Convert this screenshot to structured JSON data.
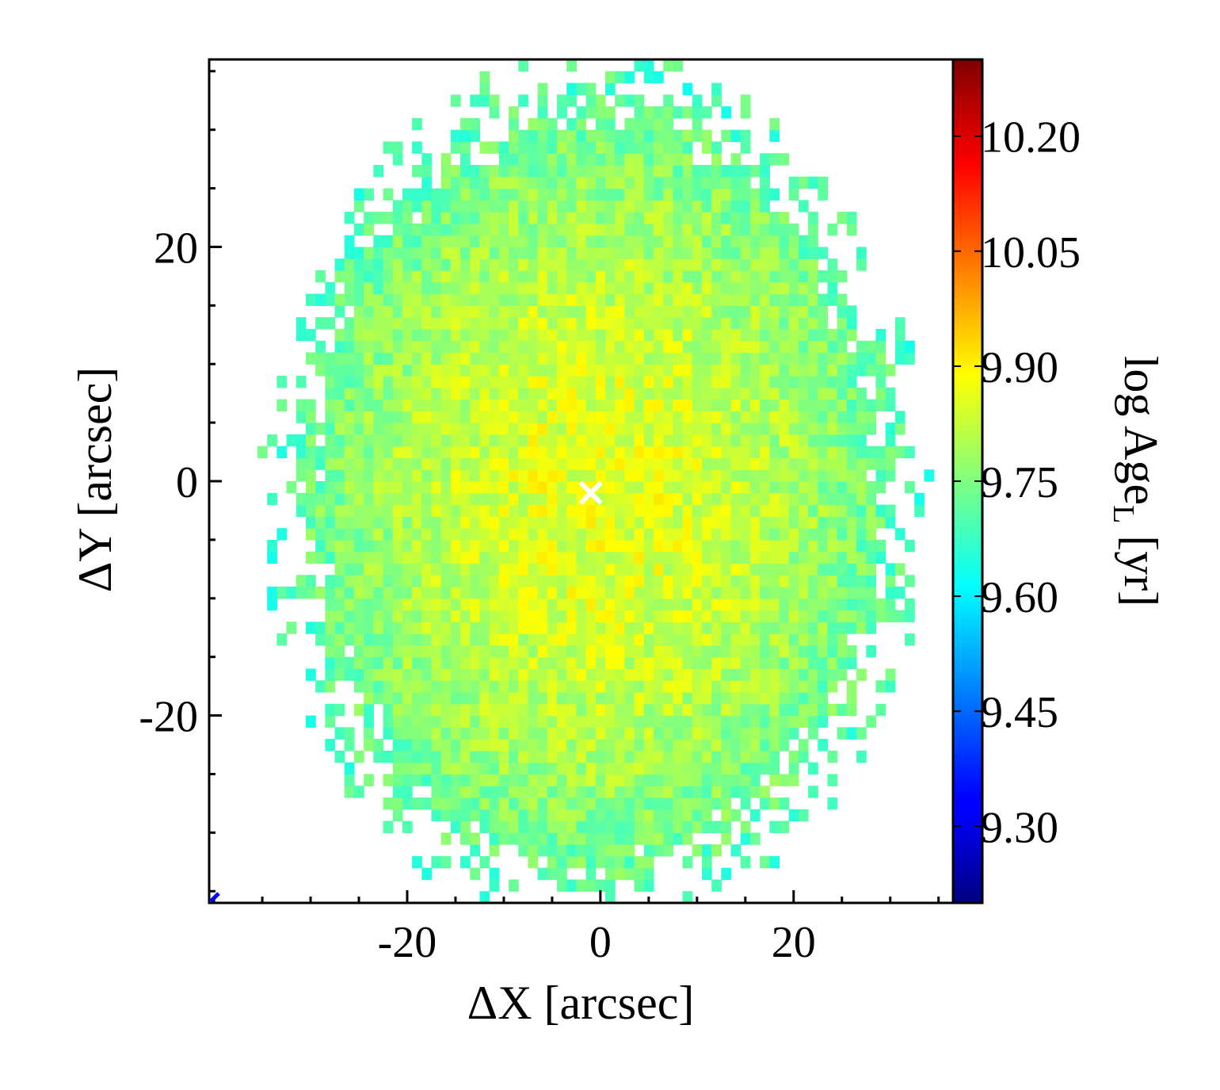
{
  "chart_data": {
    "type": "heatmap",
    "title": "",
    "xlabel": "ΔX [arcsec]",
    "ylabel": "ΔY [arcsec]",
    "xlim": [
      -40.5,
      36.5
    ],
    "ylim": [
      -36,
      36
    ],
    "xticks": [
      -20,
      0,
      20
    ],
    "xtick_labels": [
      "-20",
      "0",
      "20"
    ],
    "yticks": [
      -20,
      0,
      20
    ],
    "ytick_labels": [
      "-20",
      "0",
      "20"
    ],
    "x_minor_step": 5,
    "y_minor_step": 5,
    "grid": false,
    "colorbar": {
      "label": "log Age",
      "label_subscript": "L",
      "label_suffix": " [yr]",
      "range": [
        9.2,
        10.3
      ],
      "ticks": [
        9.3,
        9.45,
        9.6,
        9.75,
        9.9,
        10.05,
        10.2
      ],
      "tick_labels": [
        "9.30",
        "9.45",
        "9.60",
        "9.75",
        "9.90",
        "10.05",
        "10.20"
      ],
      "colormap": "jet"
    },
    "map": {
      "pixel_size_arcsec": 1.0,
      "center_arcsec": [
        -0.5,
        -1.0
      ],
      "semi_axis_x_arcsec": 33,
      "semi_axis_y_arcsec": 36,
      "center_value": 9.86,
      "edge_value": 9.69,
      "noise_amplitude": 0.06,
      "typical_range": [
        9.58,
        9.9
      ]
    },
    "markers": [
      {
        "name": "center",
        "symbol": "x",
        "x": -1.0,
        "y": -1.0,
        "color": "#ffffff"
      }
    ]
  }
}
